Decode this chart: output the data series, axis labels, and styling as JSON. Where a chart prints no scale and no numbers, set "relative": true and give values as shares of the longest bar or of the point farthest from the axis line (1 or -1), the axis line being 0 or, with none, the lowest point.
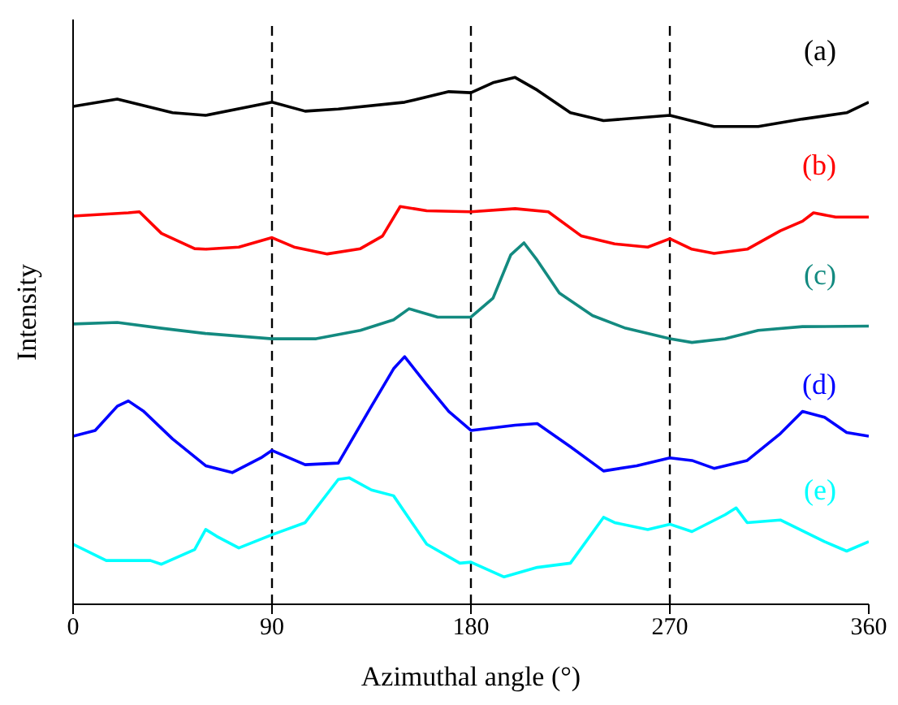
{
  "chart_data": {
    "type": "line",
    "relative": true,
    "xlabel": "Azimuthal angle (°)",
    "ylabel": "Intensity",
    "xlim": [
      0,
      360
    ],
    "xticks": [
      0,
      90,
      180,
      270,
      360
    ],
    "tick_labels": "x",
    "grid": false,
    "legend": false,
    "marker": "none",
    "line_style": "solid",
    "ref_lines": [
      {
        "axis": "x",
        "value": 90,
        "color": "#000000",
        "line_style": "dashed"
      },
      {
        "axis": "x",
        "value": 180,
        "color": "#000000",
        "line_style": "dashed"
      },
      {
        "axis": "x",
        "value": 270,
        "color": "#000000",
        "line_style": "dashed"
      }
    ],
    "series": [
      {
        "name": "(a)",
        "color": "#000000",
        "x": [
          0,
          20,
          45,
          60,
          90,
          105,
          120,
          150,
          170,
          180,
          190,
          200,
          210,
          225,
          240,
          270,
          290,
          310,
          330,
          350,
          360
        ],
        "values": [
          0.945,
          0.959,
          0.933,
          0.928,
          0.953,
          0.936,
          0.94,
          0.953,
          0.973,
          0.971,
          0.99,
          1,
          0.976,
          0.933,
          0.918,
          0.928,
          0.907,
          0.907,
          0.921,
          0.933,
          0.953
        ]
      },
      {
        "name": "(b)",
        "color": "#ff0000",
        "x": [
          0,
          25,
          30,
          40,
          55,
          60,
          75,
          90,
          100,
          115,
          130,
          140,
          148,
          160,
          180,
          200,
          215,
          230,
          245,
          260,
          270,
          280,
          290,
          305,
          320,
          330,
          335,
          345,
          360
        ],
        "values": [
          0.737,
          0.743,
          0.745,
          0.704,
          0.675,
          0.674,
          0.678,
          0.696,
          0.678,
          0.665,
          0.675,
          0.699,
          0.755,
          0.747,
          0.745,
          0.751,
          0.745,
          0.699,
          0.684,
          0.678,
          0.694,
          0.674,
          0.666,
          0.674,
          0.709,
          0.727,
          0.743,
          0.735,
          0.735
        ]
      },
      {
        "name": "(c)",
        "color": "#138a80",
        "x": [
          0,
          20,
          40,
          60,
          90,
          110,
          130,
          145,
          152,
          165,
          180,
          190,
          198,
          204,
          210,
          220,
          235,
          250,
          270,
          280,
          295,
          310,
          330,
          360
        ],
        "values": [
          0.532,
          0.535,
          0.524,
          0.514,
          0.504,
          0.504,
          0.52,
          0.54,
          0.561,
          0.545,
          0.545,
          0.581,
          0.663,
          0.686,
          0.653,
          0.591,
          0.548,
          0.524,
          0.504,
          0.497,
          0.504,
          0.52,
          0.527,
          0.528
        ]
      },
      {
        "name": "(d)",
        "color": "#0000ff",
        "x": [
          0,
          10,
          20,
          25,
          32,
          45,
          60,
          72,
          85,
          90,
          105,
          120,
          135,
          145,
          150,
          160,
          170,
          180,
          200,
          210,
          225,
          240,
          255,
          270,
          280,
          290,
          305,
          320,
          330,
          340,
          350,
          360
        ],
        "values": [
          0.319,
          0.33,
          0.376,
          0.386,
          0.366,
          0.314,
          0.263,
          0.25,
          0.278,
          0.292,
          0.265,
          0.268,
          0.376,
          0.447,
          0.47,
          0.417,
          0.366,
          0.33,
          0.34,
          0.343,
          0.299,
          0.253,
          0.263,
          0.278,
          0.273,
          0.258,
          0.273,
          0.324,
          0.366,
          0.355,
          0.326,
          0.319
        ]
      },
      {
        "name": "(e)",
        "color": "#00ffff",
        "x": [
          0,
          15,
          35,
          40,
          55,
          60,
          65,
          75,
          90,
          105,
          120,
          125,
          135,
          145,
          160,
          175,
          180,
          195,
          210,
          225,
          240,
          245,
          260,
          270,
          280,
          295,
          300,
          305,
          320,
          340,
          350,
          360
        ],
        "values": [
          0.114,
          0.083,
          0.083,
          0.076,
          0.104,
          0.142,
          0.129,
          0.107,
          0.132,
          0.155,
          0.237,
          0.24,
          0.217,
          0.206,
          0.114,
          0.078,
          0.08,
          0.052,
          0.07,
          0.078,
          0.165,
          0.155,
          0.142,
          0.152,
          0.138,
          0.17,
          0.183,
          0.155,
          0.16,
          0.119,
          0.101,
          0.119
        ]
      }
    ]
  }
}
